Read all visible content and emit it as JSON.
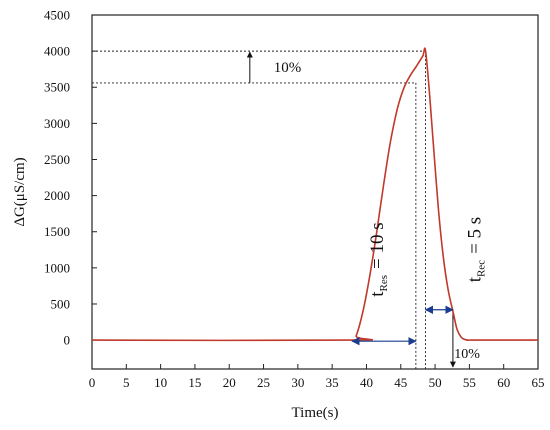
{
  "chart_data": {
    "type": "line",
    "xlabel": "Time(s)",
    "ylabel": "ΔG(μS/cm)",
    "xlim": [
      0,
      65
    ],
    "ylim": [
      -400,
      4500
    ],
    "xticks": [
      0,
      5,
      10,
      15,
      20,
      25,
      30,
      35,
      40,
      45,
      50,
      55,
      60,
      65
    ],
    "yticks": [
      0,
      500,
      1000,
      1500,
      2000,
      2500,
      3000,
      3500,
      4000,
      4500
    ],
    "grid": false,
    "series": [
      {
        "color": "#c0392b",
        "x": [
          0,
          37.9,
          38.5,
          39.5,
          40.5,
          41.5,
          42.5,
          43.5,
          44.5,
          45.5,
          46.5,
          47.2,
          48.2,
          48.6,
          49.2,
          49.8,
          50.5,
          51.2,
          51.9,
          52.6,
          53.2,
          53.8,
          54.3,
          54.8,
          55.5,
          65
        ],
        "y": [
          0,
          0,
          60,
          400,
          900,
          1500,
          2150,
          2750,
          3200,
          3500,
          3680,
          3780,
          3930,
          4010,
          3400,
          2650,
          1800,
          1150,
          700,
          400,
          150,
          40,
          10,
          0,
          0,
          0
        ]
      }
    ],
    "annotations": {
      "peak_value": 4000,
      "ninety_percent_value": 3560,
      "top_percent_label": "10%",
      "bottom_percent_label": "10%",
      "t_res_prefix": "t",
      "t_res_sub": "Res",
      "t_res_value": "= 10 s",
      "t_rec_prefix": "t",
      "t_rec_sub": "Rec",
      "t_rec_value": "= 5 s",
      "t_res_x_start": 37.9,
      "t_res_x_end": 47.2,
      "t_rec_x_start": 48.6,
      "t_rec_x_end": 52.6,
      "t_res_vline_x": 47.2,
      "peak_vline_x": 48.6,
      "rec_vline_x": 52.6
    }
  }
}
